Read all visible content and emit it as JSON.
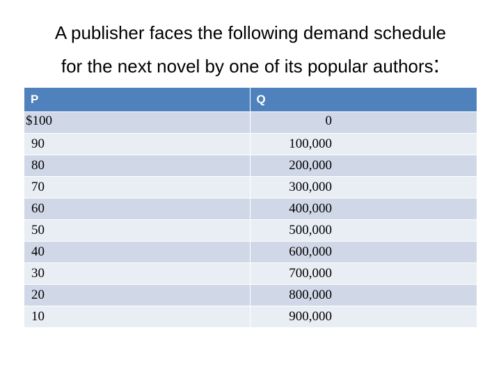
{
  "title": {
    "line1": "A publisher faces the following demand schedule",
    "line2": "for the next novel by one of its popular authors",
    "colon": ":"
  },
  "table": {
    "headers": [
      "P",
      "Q"
    ],
    "rows": [
      [
        "$100",
        "0"
      ],
      [
        "90",
        "100,000"
      ],
      [
        "80",
        "200,000"
      ],
      [
        "70",
        "300,000"
      ],
      [
        "60",
        "400,000"
      ],
      [
        "50",
        "500,000"
      ],
      [
        "40",
        "600,000"
      ],
      [
        "30",
        "700,000"
      ],
      [
        "20",
        "800,000"
      ],
      [
        "10",
        "900,000"
      ]
    ],
    "header_color": "#4f81bd",
    "row_color_odd": "#d0d8e8",
    "row_color_even": "#e9edf4"
  }
}
